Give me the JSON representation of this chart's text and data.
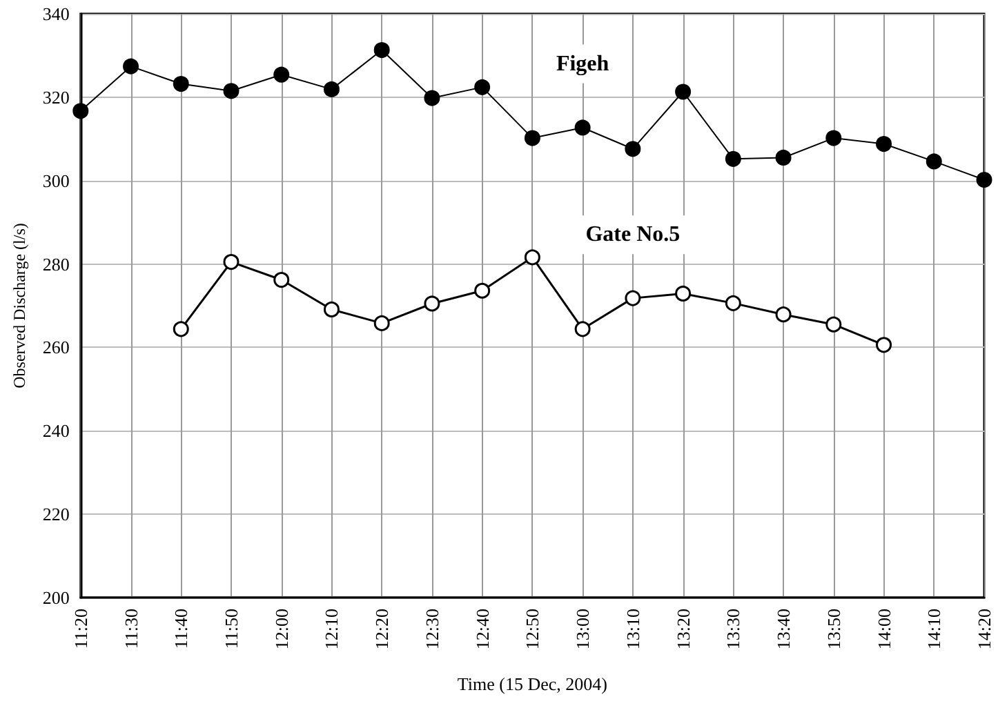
{
  "chart_data": {
    "type": "line",
    "xlabel": "Time (15 Dec, 2004)",
    "ylabel": "Observed Discharge (l/s)",
    "categories": [
      "11:20",
      "11:30",
      "11:40",
      "11:50",
      "12:00",
      "12:10",
      "12:20",
      "12:30",
      "12:40",
      "12:50",
      "13:00",
      "13:10",
      "13:20",
      "13:30",
      "13:40",
      "13:50",
      "14:00",
      "14:10",
      "14:20"
    ],
    "series": [
      {
        "name": "Figeh",
        "color": "#000000",
        "marker": "circle",
        "values": [
          316.7,
          327.4,
          323.2,
          321.5,
          325.4,
          321.9,
          331.3,
          319.8,
          322.4,
          310.2,
          312.7,
          307.6,
          321.3,
          305.2,
          305.5,
          310.2,
          308.8,
          304.6,
          300.2
        ]
      },
      {
        "name": "Gate No.5",
        "color": "#000000",
        "marker": "circle",
        "values": [
          null,
          null,
          264.4,
          280.5,
          276.2,
          269.1,
          265.8,
          270.5,
          273.6,
          281.6,
          264.4,
          271.8,
          272.9,
          270.6,
          267.9,
          265.5,
          260.6,
          null,
          null
        ]
      }
    ],
    "ylim": [
      200,
      340
    ],
    "yticks": [
      200,
      220,
      240,
      260,
      280,
      300,
      320,
      340
    ],
    "grid": true,
    "legend": false,
    "line_style": "solid"
  }
}
